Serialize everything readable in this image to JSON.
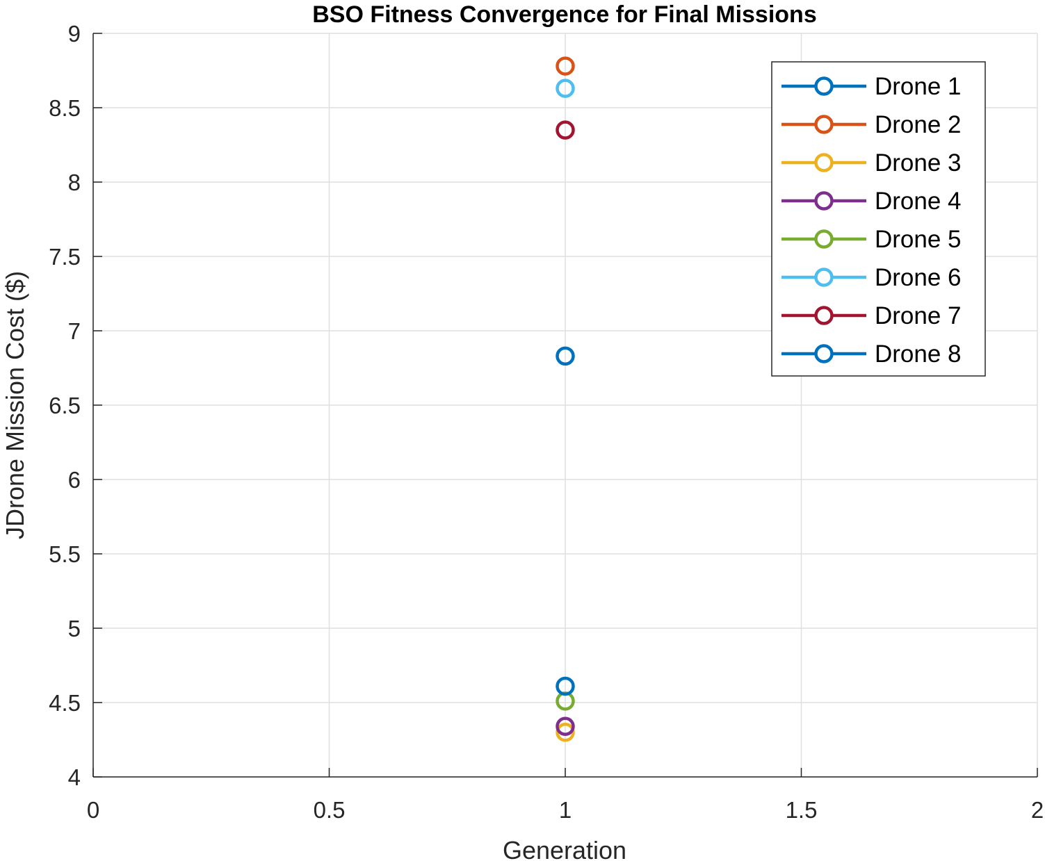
{
  "chart_data": {
    "type": "scatter",
    "title": "BSO Fitness Convergence for Final Missions",
    "xlabel": "Generation",
    "ylabel": "JDrone Mission Cost ($)",
    "xlim": [
      0,
      2
    ],
    "ylim": [
      4,
      9
    ],
    "xticks": [
      0,
      0.5,
      1,
      1.5,
      2
    ],
    "xtick_labels": [
      "0",
      "0.5",
      "1",
      "1.5",
      "2"
    ],
    "yticks": [
      4,
      4.5,
      5,
      5.5,
      6,
      6.5,
      7,
      7.5,
      8,
      8.5,
      9
    ],
    "ytick_labels": [
      "4",
      "4.5",
      "5",
      "5.5",
      "6",
      "6.5",
      "7",
      "7.5",
      "8",
      "8.5",
      "9"
    ],
    "grid": true,
    "legend_position": "top-right",
    "marker": "circle",
    "series": [
      {
        "name": "Drone 1",
        "color": "#0072BD",
        "x": [
          1
        ],
        "y": [
          6.83
        ]
      },
      {
        "name": "Drone 2",
        "color": "#D95319",
        "x": [
          1
        ],
        "y": [
          8.78
        ]
      },
      {
        "name": "Drone 3",
        "color": "#EDB120",
        "x": [
          1
        ],
        "y": [
          4.3
        ]
      },
      {
        "name": "Drone 4",
        "color": "#7E2F8E",
        "x": [
          1
        ],
        "y": [
          4.34
        ]
      },
      {
        "name": "Drone 5",
        "color": "#77AC30",
        "x": [
          1
        ],
        "y": [
          4.51
        ]
      },
      {
        "name": "Drone 6",
        "color": "#4DBEEE",
        "x": [
          1
        ],
        "y": [
          8.63
        ]
      },
      {
        "name": "Drone 7",
        "color": "#A2142F",
        "x": [
          1
        ],
        "y": [
          8.35
        ]
      },
      {
        "name": "Drone 8",
        "color": "#0072BD",
        "x": [
          1
        ],
        "y": [
          4.61
        ]
      }
    ]
  }
}
